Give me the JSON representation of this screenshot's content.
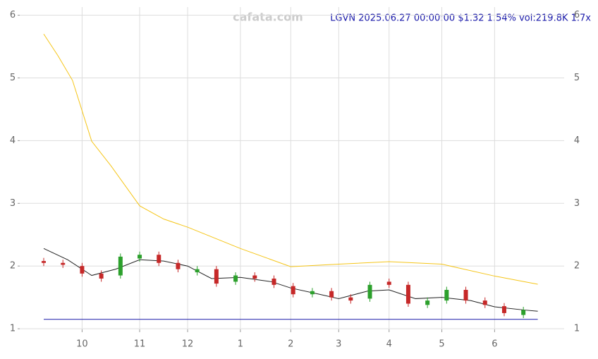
{
  "chart_data": {
    "type": "candlestick",
    "title": "LGVN 2025.06.27 00:00:00 $1.32 1.54% vol:219.8K 1.7x",
    "watermark": "cafata.com",
    "x": [
      0,
      8,
      16,
      24,
      32,
      40,
      48,
      56,
      64,
      72,
      80,
      88,
      96,
      104,
      112,
      120,
      128,
      136,
      144,
      152,
      160,
      168,
      176,
      184,
      192,
      200
    ],
    "open": [
      2.08,
      2.05,
      2.0,
      1.88,
      1.85,
      2.12,
      2.18,
      2.05,
      1.9,
      1.95,
      1.75,
      1.85,
      1.8,
      1.68,
      1.55,
      1.6,
      1.5,
      1.48,
      1.75,
      1.7,
      1.38,
      1.45,
      1.62,
      1.45,
      1.36,
      1.22
    ],
    "high": [
      2.13,
      2.1,
      2.05,
      1.93,
      2.2,
      2.23,
      2.23,
      2.1,
      2.0,
      2.0,
      1.9,
      1.9,
      1.85,
      1.73,
      1.65,
      1.65,
      1.55,
      1.75,
      1.8,
      1.75,
      1.5,
      1.67,
      1.67,
      1.5,
      1.41,
      1.35
    ],
    "low": [
      2.0,
      1.97,
      1.83,
      1.75,
      1.8,
      2.07,
      2.0,
      1.9,
      1.85,
      1.67,
      1.7,
      1.75,
      1.65,
      1.5,
      1.5,
      1.45,
      1.4,
      1.43,
      1.65,
      1.35,
      1.33,
      1.4,
      1.4,
      1.33,
      1.2,
      1.17
    ],
    "close": [
      2.05,
      2.02,
      1.88,
      1.8,
      2.15,
      2.18,
      2.05,
      1.95,
      1.95,
      1.72,
      1.85,
      1.8,
      1.7,
      1.55,
      1.6,
      1.5,
      1.45,
      1.7,
      1.7,
      1.4,
      1.45,
      1.62,
      1.45,
      1.38,
      1.25,
      1.3
    ],
    "up_color": "#2ca02c",
    "down_color": "#c62828",
    "lines": [
      {
        "color": "#f5c518",
        "x": [
          0,
          6,
          12,
          20,
          28,
          40,
          50,
          60,
          82,
          103,
          123,
          144,
          166,
          188,
          206
        ],
        "values": [
          5.7,
          5.35,
          4.96,
          3.99,
          3.6,
          2.96,
          2.75,
          2.62,
          2.28,
          1.99,
          2.03,
          2.07,
          2.03,
          1.84,
          1.71
        ]
      },
      {
        "color": "#222222",
        "x": [
          0,
          10,
          20,
          30,
          40,
          50,
          60,
          70,
          82,
          95,
          103,
          115,
          123,
          135,
          144,
          155,
          166,
          178,
          188,
          200,
          206
        ],
        "values": [
          2.28,
          2.1,
          1.85,
          1.95,
          2.1,
          2.08,
          2.0,
          1.8,
          1.82,
          1.75,
          1.65,
          1.55,
          1.48,
          1.6,
          1.62,
          1.48,
          1.5,
          1.45,
          1.35,
          1.3,
          1.28
        ]
      },
      {
        "color": "#1a1aaa",
        "x": [
          0,
          206
        ],
        "values": [
          1.15,
          1.15
        ]
      }
    ],
    "xlim": [
      -10,
      217
    ],
    "xticks": [
      {
        "value": 16,
        "label": "10"
      },
      {
        "value": 40,
        "label": "11"
      },
      {
        "value": 60,
        "label": "12"
      },
      {
        "value": 82,
        "label": "1"
      },
      {
        "value": 103,
        "label": "2"
      },
      {
        "value": 123,
        "label": "3"
      },
      {
        "value": 144,
        "label": "4"
      },
      {
        "value": 166,
        "label": "5"
      },
      {
        "value": 188,
        "label": "6"
      }
    ],
    "ylim": [
      0.99,
      6.13
    ],
    "yticks": [
      1,
      2,
      3,
      4,
      5,
      6
    ],
    "grid": true
  }
}
